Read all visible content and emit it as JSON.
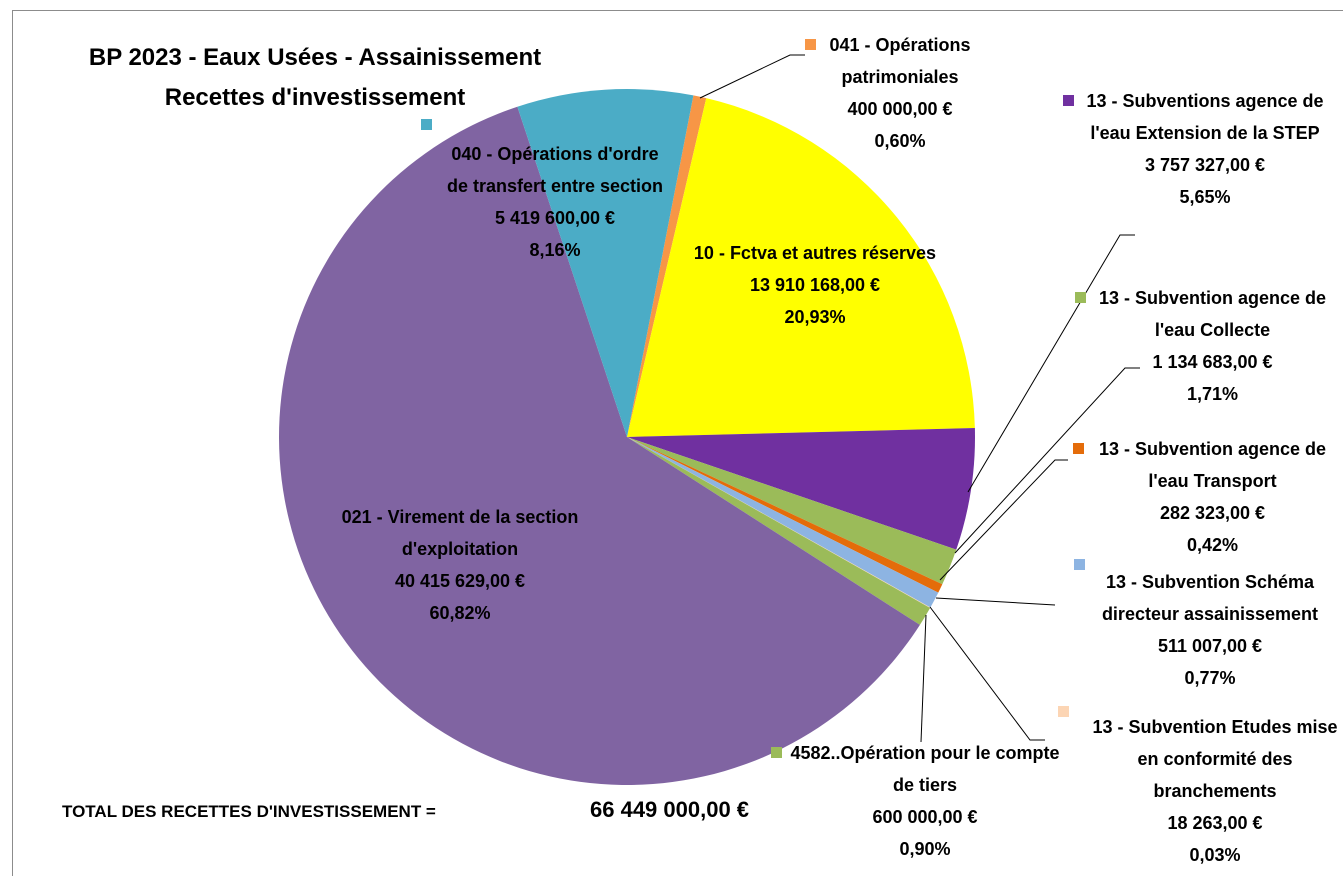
{
  "chart_data": {
    "type": "pie",
    "title": "BP 2023 - Eaux Usées - Assainissement",
    "subtitle": "Recettes d'investissement",
    "categories": [
      "041 - Opérations patrimoniales",
      "10 - Fctva et autres réserves",
      "13 - Subventions agence de l'eau Extension de la STEP",
      "13 - Subvention agence de l'eau Collecte",
      "13 - Subvention agence de l'eau Transport",
      "13 - Subvention Schéma directeur assainissement",
      "13 - Subvention Etudes mise en conformité des branchements",
      "4582..Opération pour le compte de tiers",
      "021 - Virement de la section d'exploitation",
      "040 - Opérations d'ordre de transfert entre section"
    ],
    "values": [
      400000,
      13910168,
      3757327,
      1134683,
      282323,
      511007,
      18263,
      600000,
      40415629,
      5419600
    ],
    "value_labels": [
      "400 000,00 €",
      "13 910 168,00 €",
      "3 757 327,00 €",
      "1 134 683,00 €",
      "282 323,00 €",
      "511 007,00 €",
      "18 263,00 €",
      "600 000,00 €",
      "40 415 629,00 €",
      "5 419 600,00 €"
    ],
    "percents": [
      0.6,
      20.93,
      5.65,
      1.71,
      0.42,
      0.77,
      0.03,
      0.9,
      60.82,
      8.16
    ],
    "percent_labels": [
      "0,60%",
      "20,93%",
      "5,65%",
      "1,71%",
      "0,42%",
      "0,77%",
      "0,03%",
      "0,90%",
      "60,82%",
      "8,16%"
    ],
    "colors": [
      "#f79646",
      "#ffff00",
      "#7030a0",
      "#9bbb59",
      "#e46c0a",
      "#8db4e2",
      "#fcd5b4",
      "#9bbb59",
      "#8064a2",
      "#4bacc6"
    ],
    "total": {
      "label": "TOTAL DES RECETTES D'INVESTISSEMENT  =",
      "value": 66449000,
      "value_label": "66 449 000,00 €"
    }
  }
}
